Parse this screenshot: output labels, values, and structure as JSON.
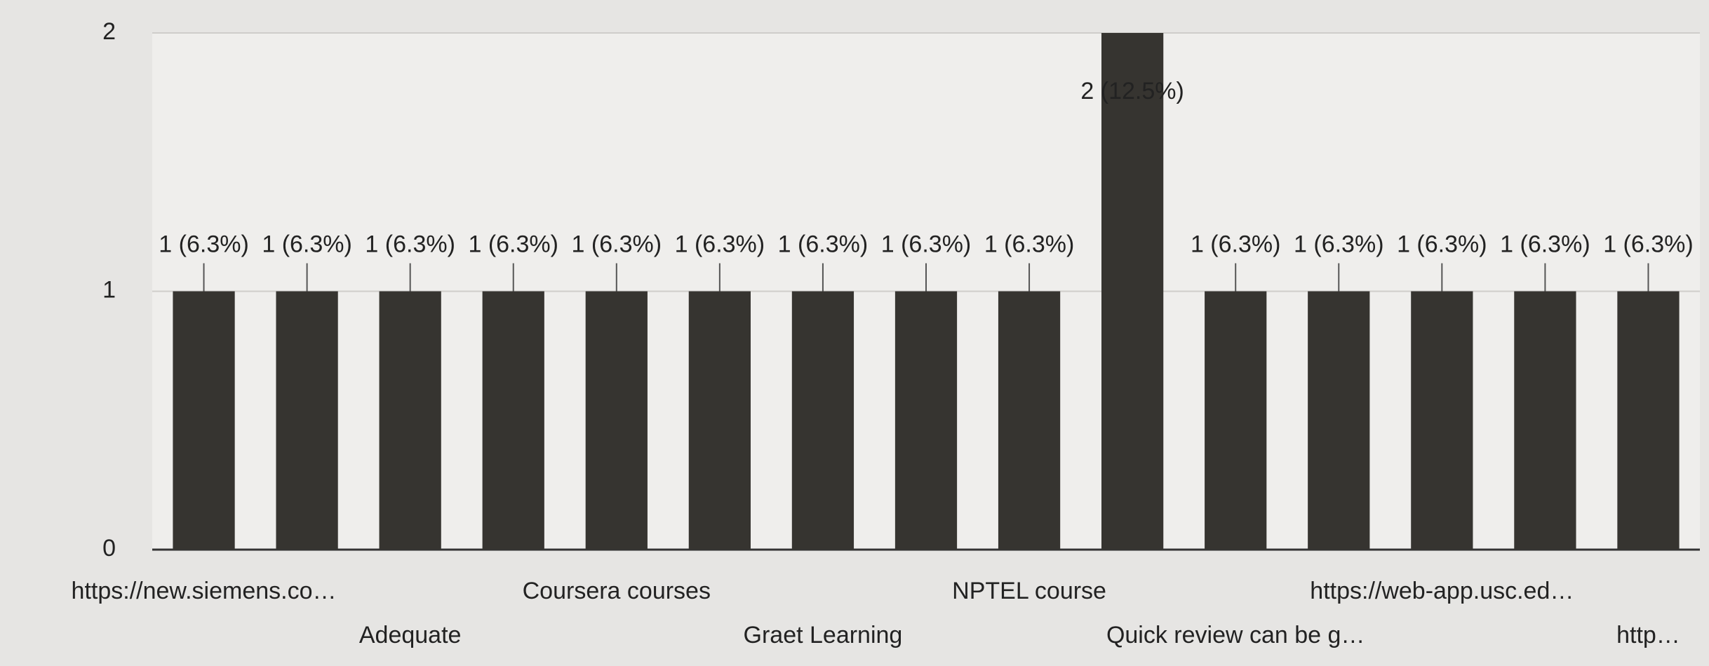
{
  "chart_data": {
    "type": "bar",
    "categories": [
      "https://new.siemens.co…",
      null,
      "Adequate",
      null,
      "Coursera courses",
      null,
      "Graet Learning",
      null,
      "NPTEL course",
      null,
      "Quick review can be g…",
      null,
      "https://web-app.usc.ed…",
      null,
      "http…"
    ],
    "values": [
      1,
      1,
      1,
      1,
      1,
      1,
      1,
      1,
      1,
      2,
      1,
      1,
      1,
      1,
      1
    ],
    "value_labels": [
      "1 (6.3%)",
      "1 (6.3%)",
      "1 (6.3%)",
      "1 (6.3%)",
      "1 (6.3%)",
      "1 (6.3%)",
      "1 (6.3%)",
      "1 (6.3%)",
      "1 (6.3%)",
      "2 (12.5%)",
      "1 (6.3%)",
      "1 (6.3%)",
      "1 (6.3%)",
      "1 (6.3%)",
      "1 (6.3%)"
    ],
    "color": "#363430",
    "ylim": [
      0,
      2
    ],
    "yticks": [
      0,
      1,
      2
    ],
    "grid": true
  }
}
